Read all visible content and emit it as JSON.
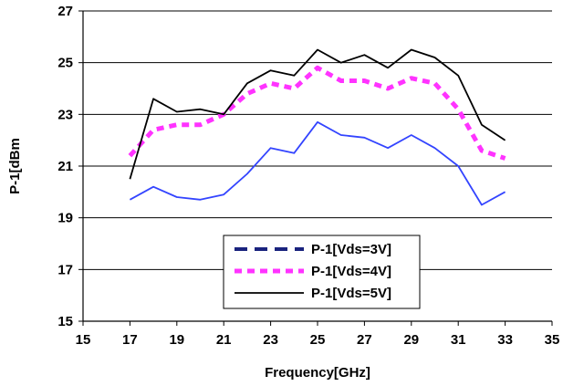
{
  "chart_data": {
    "type": "line",
    "xlabel": "Frequency[GHz]",
    "ylabel": "P-1[dBm",
    "xlim": [
      15,
      35
    ],
    "ylim": [
      15,
      27
    ],
    "xticks": [
      15,
      17,
      19,
      21,
      23,
      25,
      27,
      29,
      31,
      33,
      35
    ],
    "yticks": [
      15,
      17,
      19,
      21,
      23,
      25,
      27
    ],
    "x_tick_labels": [
      "15",
      "17",
      "19",
      "21",
      "23",
      "25",
      "27",
      "29",
      "31",
      "33",
      "35"
    ],
    "y_tick_labels": [
      "15",
      "17",
      "19",
      "21",
      "23",
      "25",
      "27"
    ],
    "grid": "horizontal",
    "legend_position": "bottom-center",
    "x": [
      17,
      18,
      19,
      20,
      21,
      22,
      23,
      24,
      25,
      26,
      27,
      28,
      29,
      30,
      31,
      32,
      33
    ],
    "series": [
      {
        "name": "P-1[Vds=3V]",
        "color": "#3344ff",
        "legend_color": "#1a237e",
        "dash": "solid",
        "legend_dash": "dashed",
        "values": [
          19.7,
          20.2,
          19.8,
          19.7,
          19.9,
          20.7,
          21.7,
          21.5,
          22.7,
          22.2,
          22.1,
          21.7,
          22.2,
          21.7,
          21.0,
          19.5,
          20.0
        ]
      },
      {
        "name": "P-1[Vds=4V]",
        "color": "#ff33ff",
        "legend_color": "#ff33ff",
        "dash": "dotted",
        "legend_dash": "dotted",
        "values": [
          21.4,
          22.4,
          22.6,
          22.6,
          23.0,
          23.8,
          24.2,
          24.0,
          24.8,
          24.3,
          24.3,
          24.0,
          24.4,
          24.2,
          23.2,
          21.6,
          21.3
        ]
      },
      {
        "name": "P-1[Vds=5V]",
        "color": "#000000",
        "legend_color": "#000000",
        "dash": "solid",
        "legend_dash": "solid",
        "values": [
          20.5,
          23.6,
          23.1,
          23.2,
          23.0,
          24.2,
          24.7,
          24.5,
          25.5,
          25.0,
          25.3,
          24.8,
          25.5,
          25.2,
          24.5,
          22.6,
          22.0
        ]
      }
    ]
  }
}
